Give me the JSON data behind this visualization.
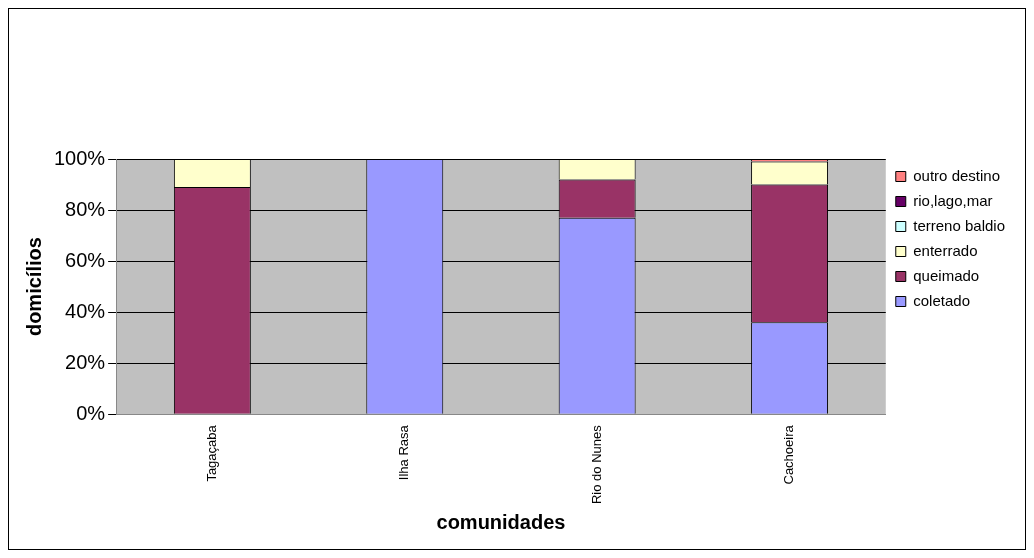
{
  "chart_data": {
    "type": "bar",
    "stacked": true,
    "xlabel": "comunidades",
    "ylabel": "domicílios",
    "categories": [
      "Tagaçaba",
      "Ilha Rasa",
      "Rio do Nunes",
      "Cachoeira"
    ],
    "series": [
      {
        "name": "coletado",
        "color": "#9999ff",
        "values": [
          0,
          100,
          77,
          36
        ]
      },
      {
        "name": "queimado",
        "color": "#993366",
        "values": [
          89,
          0,
          15,
          54
        ]
      },
      {
        "name": "enterrado",
        "color": "#ffffcc",
        "values": [
          11,
          0,
          8,
          9
        ]
      },
      {
        "name": "terreno baldio",
        "color": "#ccffff",
        "values": [
          0,
          0,
          0,
          0
        ]
      },
      {
        "name": "rio,lago,mar",
        "color": "#660066",
        "values": [
          0,
          0,
          0,
          0
        ]
      },
      {
        "name": "outro destino",
        "color": "#ff8080",
        "values": [
          0,
          0,
          0,
          1
        ]
      }
    ],
    "ylim": [
      0,
      100
    ],
    "yticks": [
      {
        "value": 0,
        "label": "0%"
      },
      {
        "value": 20,
        "label": "20%"
      },
      {
        "value": 40,
        "label": "40%"
      },
      {
        "value": 60,
        "label": "60%"
      },
      {
        "value": 80,
        "label": "80%"
      },
      {
        "value": 100,
        "label": "100%"
      }
    ],
    "grid": "y",
    "legend": "right"
  }
}
